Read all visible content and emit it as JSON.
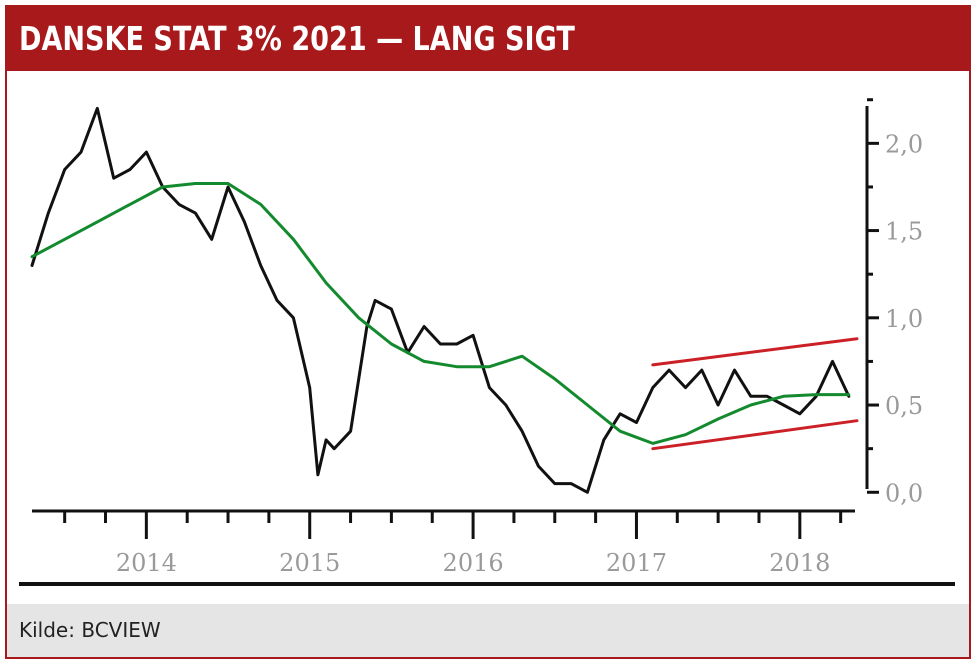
{
  "title": "DANSKE STAT 3% 2021 — LANG SIGT",
  "source": "Kilde: BCVIEW",
  "colors": {
    "brand": "#a8191b",
    "price": "#111111",
    "moving_average": "#138a2d",
    "trend_channel": "#cc2027",
    "tick_label": "#9a9a9a"
  },
  "chart_data": {
    "type": "line",
    "xlabel": "",
    "ylabel": "",
    "ylim": [
      -0.05,
      2.3
    ],
    "xlim": [
      2013.3,
      2018.35
    ],
    "x_ticks": [
      "2014",
      "2015",
      "2016",
      "2017",
      "2018"
    ],
    "y_ticks": [
      "0,0",
      "0,5",
      "1,0",
      "1,5",
      "2,0"
    ],
    "y_axis_position": "right",
    "grid": false,
    "legend": "none",
    "series": [
      {
        "kind": "price",
        "x": [
          2013.3,
          2013.4,
          2013.5,
          2013.6,
          2013.7,
          2013.8,
          2013.9,
          2014.0,
          2014.1,
          2014.2,
          2014.3,
          2014.4,
          2014.5,
          2014.6,
          2014.7,
          2014.8,
          2014.9,
          2015.0,
          2015.05,
          2015.1,
          2015.15,
          2015.25,
          2015.35,
          2015.4,
          2015.5,
          2015.6,
          2015.7,
          2015.8,
          2015.9,
          2016.0,
          2016.1,
          2016.2,
          2016.3,
          2016.4,
          2016.5,
          2016.6,
          2016.7,
          2016.8,
          2016.9,
          2017.0,
          2017.1,
          2017.2,
          2017.3,
          2017.4,
          2017.5,
          2017.6,
          2017.7,
          2017.8,
          2017.9,
          2018.0,
          2018.1,
          2018.2,
          2018.3
        ],
        "y": [
          1.3,
          1.6,
          1.85,
          1.95,
          2.2,
          1.8,
          1.85,
          1.95,
          1.75,
          1.65,
          1.6,
          1.45,
          1.75,
          1.55,
          1.3,
          1.1,
          1.0,
          0.6,
          0.1,
          0.3,
          0.25,
          0.35,
          0.95,
          1.1,
          1.05,
          0.8,
          0.95,
          0.85,
          0.85,
          0.9,
          0.6,
          0.5,
          0.35,
          0.15,
          0.05,
          0.05,
          0.0,
          0.3,
          0.45,
          0.4,
          0.6,
          0.7,
          0.6,
          0.7,
          0.5,
          0.7,
          0.55,
          0.55,
          0.5,
          0.45,
          0.55,
          0.75,
          0.55
        ]
      },
      {
        "kind": "moving_average",
        "x": [
          2013.3,
          2013.5,
          2013.7,
          2013.9,
          2014.1,
          2014.3,
          2014.5,
          2014.7,
          2014.9,
          2015.1,
          2015.3,
          2015.5,
          2015.7,
          2015.9,
          2016.1,
          2016.3,
          2016.5,
          2016.7,
          2016.9,
          2017.1,
          2017.3,
          2017.5,
          2017.7,
          2017.9,
          2018.1,
          2018.3
        ],
        "y": [
          1.35,
          1.45,
          1.55,
          1.65,
          1.75,
          1.77,
          1.77,
          1.65,
          1.45,
          1.2,
          1.0,
          0.85,
          0.75,
          0.72,
          0.72,
          0.78,
          0.65,
          0.5,
          0.35,
          0.28,
          0.33,
          0.42,
          0.5,
          0.55,
          0.56,
          0.56
        ]
      },
      {
        "kind": "channel_upper",
        "x": [
          2017.1,
          2018.35
        ],
        "y": [
          0.73,
          0.88
        ]
      },
      {
        "kind": "channel_lower",
        "x": [
          2017.1,
          2018.35
        ],
        "y": [
          0.25,
          0.41
        ]
      }
    ]
  }
}
